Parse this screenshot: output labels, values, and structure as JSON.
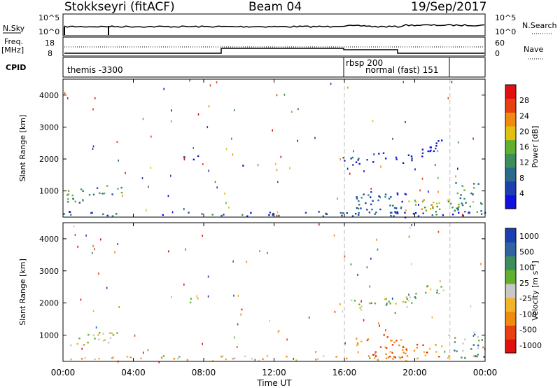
{
  "header": {
    "station": "Stokkseyri (fitACF)",
    "beam": "Beam 04",
    "date": "19/Sep/2017"
  },
  "strip_labels": {
    "nsky": "N.Sky",
    "nsky_ticks": [
      "10^5",
      "10^0"
    ],
    "nsearch": "N.Search",
    "nsearch_ticks": [
      "10^5",
      "10^0"
    ],
    "freq": "Freq.",
    "freq_unit": "[MHz]",
    "freq_ticks": [
      "18",
      "8"
    ],
    "nave": "Nave",
    "nave_ticks": [
      "60",
      "0"
    ],
    "cpid": "CPID"
  },
  "cpid_labels": [
    "themis -3300",
    "rbsp 200",
    "normal (fast) 151"
  ],
  "colors": {
    "power_scale": [
      "#1010e0",
      "#1e3fb0",
      "#2a6a8a",
      "#3c8f5a",
      "#62b030",
      "#e0c010",
      "#f08a10",
      "#e84010",
      "#e01010"
    ],
    "velocity_scale": [
      "#1e3fb0",
      "#2f64a0",
      "#3c8f5a",
      "#62b030",
      "#c8c8c8",
      "#f0b428",
      "#f08a10",
      "#e84010",
      "#e01010"
    ]
  },
  "chart_data": [
    {
      "type": "heatmap",
      "name": "power",
      "xlabel": "Time UT",
      "ylabel": "Slant Range [km]",
      "xlim": [
        0,
        24
      ],
      "ylim": [
        180,
        4500
      ],
      "x_ticks": [
        "00:00",
        "04:00",
        "08:00",
        "12:00",
        "16:00",
        "20:00",
        "00:00"
      ],
      "y_ticks": [
        "1000",
        "2000",
        "3000",
        "4000"
      ],
      "colorbar_label": "Power [dB]",
      "colorbar_ticks": [
        "4",
        "8",
        "12",
        "16",
        "20",
        "24",
        "28"
      ],
      "colorbar_range": [
        0,
        30
      ],
      "mode_change_times_ut": [
        16.0,
        22.0
      ],
      "regions": [
        {
          "t0": 0.2,
          "t1": 3.3,
          "r0": 550,
          "r1": 1000,
          "level": 0.35,
          "slope": 60
        },
        {
          "t0": 0.0,
          "t1": 24.0,
          "r0": 190,
          "r1": 330,
          "level": 0.2,
          "slope": 0
        },
        {
          "t0": 6.8,
          "t1": 7.7,
          "r0": 1950,
          "r1": 2150,
          "level": 0.05,
          "slope": 0
        },
        {
          "t0": 10.0,
          "t1": 10.2,
          "r0": 1700,
          "r1": 1950,
          "level": 0.1,
          "slope": 0
        },
        {
          "t0": 15.7,
          "t1": 18.6,
          "r0": 1750,
          "r1": 2050,
          "level": 0.1,
          "slope": 50
        },
        {
          "t0": 16.5,
          "t1": 19.5,
          "r0": 300,
          "r1": 1100,
          "level": 0.2,
          "slope": -60
        },
        {
          "t0": 18.8,
          "t1": 21.6,
          "r0": 1650,
          "r1": 2100,
          "level": 0.1,
          "slope": 220
        },
        {
          "t0": 19.0,
          "t1": 22.0,
          "r0": 300,
          "r1": 700,
          "level": 0.55,
          "slope": 0
        },
        {
          "t0": 22.0,
          "t1": 24.0,
          "r0": 250,
          "r1": 1300,
          "level": 0.4,
          "slope": 0
        }
      ]
    },
    {
      "type": "heatmap",
      "name": "velocity",
      "xlabel": "Time UT",
      "ylabel": "Slant Range [km]",
      "xlim": [
        0,
        24
      ],
      "ylim": [
        180,
        4500
      ],
      "x_ticks": [
        "00:00",
        "04:00",
        "08:00",
        "12:00",
        "16:00",
        "20:00",
        "00:00"
      ],
      "y_ticks": [
        "1000",
        "2000",
        "3000",
        "4000"
      ],
      "colorbar_label": "Velocity [m s⁻¹]",
      "colorbar_ticks": [
        "1000",
        "500",
        "100",
        "25",
        "-25",
        "-100",
        "-500",
        "-1000"
      ],
      "colorbar_range": [
        -1000,
        1000
      ],
      "mode_change_times_ut": [
        16.0,
        22.0
      ],
      "regions": [
        {
          "t0": 0.2,
          "t1": 3.3,
          "r0": 550,
          "r1": 1000,
          "level": 0.5,
          "slope": 60
        },
        {
          "t0": 0.0,
          "t1": 24.0,
          "r0": 190,
          "r1": 330,
          "level": 0.6,
          "slope": 0
        },
        {
          "t0": 6.8,
          "t1": 7.7,
          "r0": 1950,
          "r1": 2150,
          "level": 0.5,
          "slope": 0
        },
        {
          "t0": 10.0,
          "t1": 10.2,
          "r0": 1700,
          "r1": 1950,
          "level": 0.75,
          "slope": 0
        },
        {
          "t0": 15.7,
          "t1": 18.6,
          "r0": 1750,
          "r1": 2050,
          "level": 0.5,
          "slope": 50
        },
        {
          "t0": 16.5,
          "t1": 19.5,
          "r0": 300,
          "r1": 1100,
          "level": 0.75,
          "slope": -60
        },
        {
          "t0": 18.8,
          "t1": 21.6,
          "r0": 1650,
          "r1": 2100,
          "level": 0.5,
          "slope": 220
        },
        {
          "t0": 19.0,
          "t1": 22.0,
          "r0": 300,
          "r1": 700,
          "level": 0.75,
          "slope": 0
        },
        {
          "t0": 22.0,
          "t1": 24.0,
          "r0": 250,
          "r1": 1300,
          "level": 0.35,
          "slope": 0
        }
      ]
    }
  ]
}
